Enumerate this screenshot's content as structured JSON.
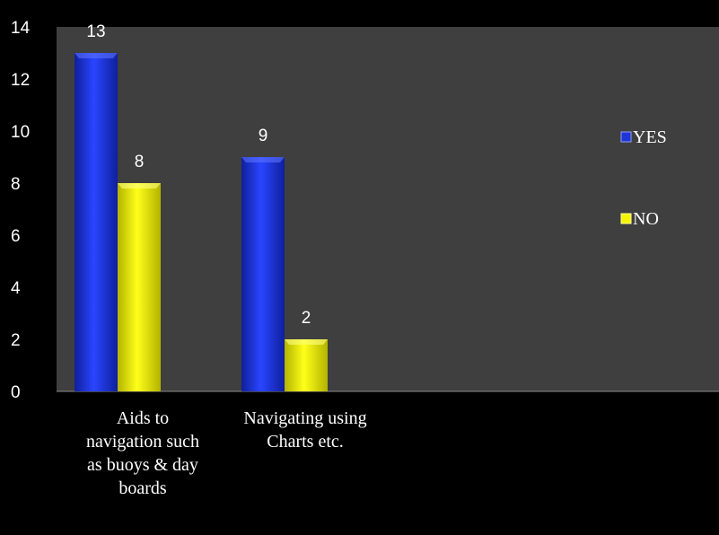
{
  "chart_data": {
    "type": "bar",
    "title": "",
    "xlabel": "",
    "ylabel": "",
    "categories": [
      [
        "Aids to",
        "navigation such",
        "as buoys & day",
        "boards"
      ],
      [
        "Navigating using",
        "Charts etc."
      ]
    ],
    "series": [
      {
        "name": "YES",
        "values": [
          13,
          9
        ],
        "color": "#1f35d6"
      },
      {
        "name": "NO",
        "values": [
          8,
          2
        ],
        "color": "#f5f500"
      }
    ],
    "ylim": [
      0,
      14
    ],
    "yticks": [
      0,
      2,
      4,
      6,
      8,
      10,
      12,
      14
    ],
    "grid": false,
    "legend_position": "right",
    "plot_background": "#3f3f3f",
    "page_background": "#000000"
  }
}
